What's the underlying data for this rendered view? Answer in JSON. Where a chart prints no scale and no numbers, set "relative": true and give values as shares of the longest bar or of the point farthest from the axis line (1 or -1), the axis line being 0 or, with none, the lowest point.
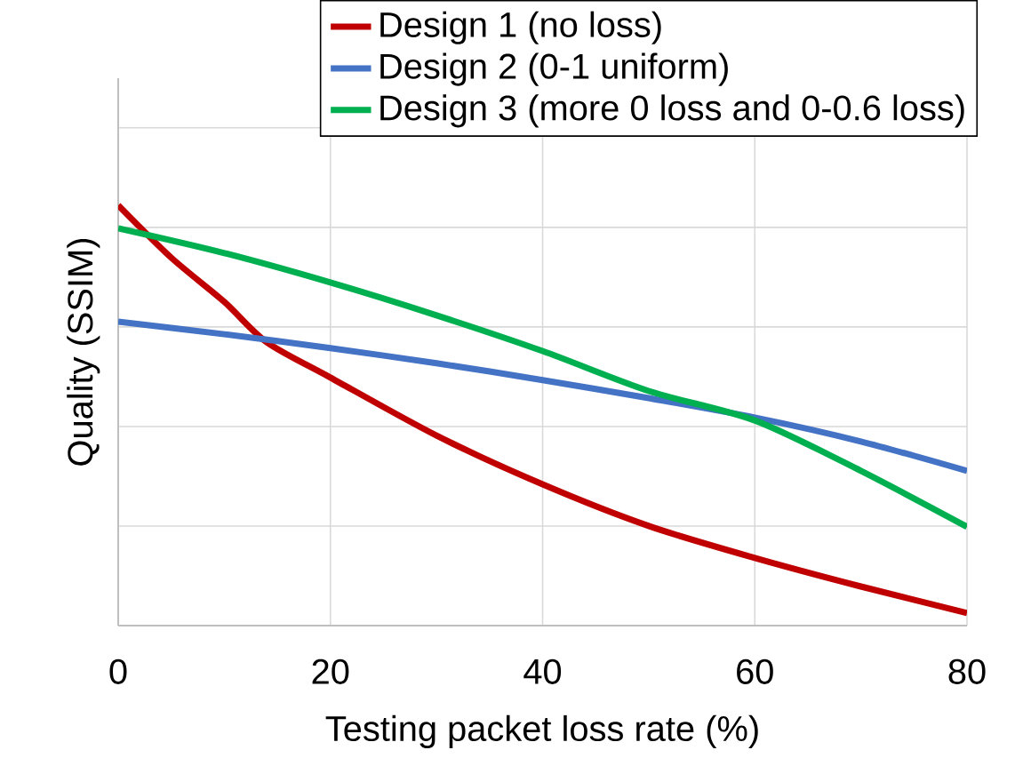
{
  "chart_data": {
    "type": "line",
    "relative": true,
    "xlabel": "Testing packet loss rate (%)",
    "ylabel": "Quality (SSIM)",
    "xlim": [
      0,
      80
    ],
    "xticks": [
      0,
      20,
      40,
      60,
      80
    ],
    "grid": true,
    "legend": "top right",
    "marker": "none",
    "line_style": "solid",
    "series": [
      {
        "name": "Design 1 (no loss)",
        "color": "#c00000",
        "x": [
          0,
          5,
          10,
          14,
          20,
          30,
          40,
          50,
          60,
          70,
          80
        ],
        "values": [
          1,
          0.875,
          0.77,
          0.674,
          0.59,
          0.452,
          0.336,
          0.237,
          0.161,
          0.093,
          0.03
        ]
      },
      {
        "name": "Design 2 (0-1 uniform)",
        "color": "#4472c4",
        "x": [
          0,
          10,
          20,
          30,
          40,
          50,
          60,
          70,
          80
        ],
        "values": [
          0.723,
          0.693,
          0.66,
          0.624,
          0.584,
          0.541,
          0.495,
          0.438,
          0.368
        ]
      },
      {
        "name": "Design 3 (more 0 loss and 0-0.6 loss)",
        "color": "#00b050",
        "x": [
          0,
          10,
          20,
          30,
          40,
          50,
          60,
          70,
          80
        ],
        "values": [
          0.945,
          0.886,
          0.816,
          0.738,
          0.653,
          0.558,
          0.488,
          0.368,
          0.235
        ]
      }
    ]
  }
}
